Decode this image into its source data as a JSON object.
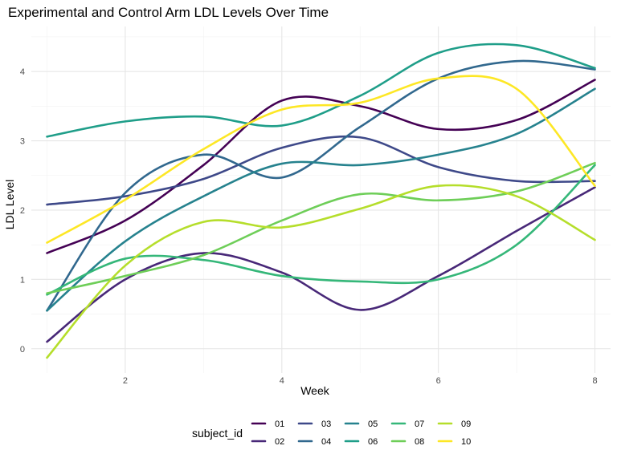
{
  "chart_data": {
    "type": "line",
    "title": "Experimental and Control Arm LDL Levels Over Time",
    "xlabel": "Week",
    "ylabel": "LDL Level",
    "xlim": [
      0.8,
      8.2
    ],
    "ylim": [
      -0.35,
      4.65
    ],
    "x_ticks": [
      2,
      4,
      6,
      8
    ],
    "y_ticks": [
      0,
      1,
      2,
      3,
      4
    ],
    "grid": true,
    "legend": {
      "title": "subject_id",
      "position": "bottom"
    },
    "series": [
      {
        "name": "01",
        "color": "#440154",
        "x": [
          1,
          2,
          3,
          4,
          5,
          6,
          7,
          8
        ],
        "y": [
          1.38,
          1.85,
          2.65,
          3.58,
          3.5,
          3.17,
          3.3,
          3.88
        ]
      },
      {
        "name": "02",
        "color": "#482878",
        "x": [
          1,
          2,
          3,
          4,
          5,
          6,
          7,
          8
        ],
        "y": [
          0.1,
          1.0,
          1.38,
          1.1,
          0.56,
          1.05,
          1.7,
          2.33
        ]
      },
      {
        "name": "03",
        "color": "#3e4989",
        "x": [
          1,
          2,
          3,
          4,
          5,
          6,
          7,
          8
        ],
        "y": [
          2.08,
          2.2,
          2.45,
          2.9,
          3.05,
          2.62,
          2.42,
          2.42
        ]
      },
      {
        "name": "04",
        "color": "#31688e",
        "x": [
          1,
          2,
          3,
          4,
          5,
          6,
          7,
          8
        ],
        "y": [
          0.55,
          2.25,
          2.8,
          2.47,
          3.2,
          3.9,
          4.15,
          4.03
        ]
      },
      {
        "name": "05",
        "color": "#26828e",
        "x": [
          1,
          2,
          3,
          4,
          5,
          6,
          7,
          8
        ],
        "y": [
          0.55,
          1.55,
          2.2,
          2.67,
          2.65,
          2.8,
          3.1,
          3.75
        ]
      },
      {
        "name": "06",
        "color": "#1f9e89",
        "x": [
          1,
          2,
          3,
          4,
          5,
          6,
          7,
          8
        ],
        "y": [
          3.06,
          3.28,
          3.35,
          3.22,
          3.65,
          4.27,
          4.38,
          4.05
        ]
      },
      {
        "name": "07",
        "color": "#35b779",
        "x": [
          1,
          2,
          3,
          4,
          5,
          6,
          7,
          8
        ],
        "y": [
          0.78,
          1.3,
          1.28,
          1.05,
          0.97,
          1.0,
          1.5,
          2.65
        ]
      },
      {
        "name": "08",
        "color": "#6ece58",
        "x": [
          1,
          2,
          3,
          4,
          5,
          6,
          7,
          8
        ],
        "y": [
          0.8,
          1.05,
          1.35,
          1.85,
          2.23,
          2.14,
          2.27,
          2.68
        ]
      },
      {
        "name": "09",
        "color": "#b5de2b",
        "x": [
          1,
          2,
          3,
          4,
          5,
          6,
          7,
          8
        ],
        "y": [
          -0.13,
          1.2,
          1.83,
          1.75,
          2.02,
          2.35,
          2.2,
          1.57
        ]
      },
      {
        "name": "10",
        "color": "#fde725",
        "x": [
          1,
          2,
          3,
          4,
          5,
          6,
          7,
          8
        ],
        "y": [
          1.53,
          2.15,
          2.88,
          3.45,
          3.55,
          3.9,
          3.75,
          2.35
        ]
      }
    ]
  }
}
